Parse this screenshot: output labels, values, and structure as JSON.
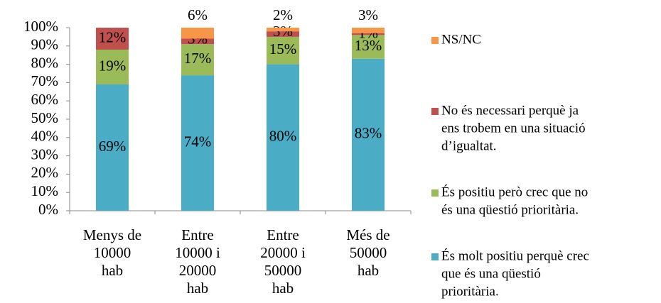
{
  "chart_data": {
    "type": "bar",
    "stacked": true,
    "categories": [
      [
        "Menys de",
        "10000",
        "hab"
      ],
      [
        "Entre",
        "10000 i",
        "20000",
        "hab"
      ],
      [
        "Entre",
        "20000 i",
        "50000",
        "hab"
      ],
      [
        "Més de",
        "50000",
        "hab"
      ]
    ],
    "series": [
      {
        "name": [
          "És molt positiu perquè crec",
          "que és una qüestió",
          "prioritària."
        ],
        "color": "#4bacc6",
        "values": [
          69,
          74,
          80,
          83
        ],
        "value_labels": [
          "69%",
          "74%",
          "80%",
          "83%"
        ]
      },
      {
        "name": [
          "És positiu però crec que no",
          "és una qüestió prioritària."
        ],
        "color": "#9bbb59",
        "values": [
          19,
          17,
          15,
          13
        ],
        "value_labels": [
          "19%",
          "17%",
          "15%",
          "13%"
        ]
      },
      {
        "name": [
          "No és necessari perquè ja",
          "ens trobem en una situació",
          "d’igualtat."
        ],
        "color": "#c0504d",
        "values": [
          12,
          3,
          3,
          1
        ],
        "value_labels": [
          "12%",
          "3%",
          "3%",
          "1%"
        ]
      },
      {
        "name": [
          "NS/NC"
        ],
        "color": "#f79646",
        "values": [
          null,
          6,
          2,
          3
        ],
        "value_labels": [
          null,
          "6%",
          "2%",
          "3%"
        ]
      }
    ],
    "ylim": [
      0,
      100
    ],
    "yticks": [
      {
        "value": 0,
        "label": "0%"
      },
      {
        "value": 10,
        "label": "10%"
      },
      {
        "value": 20,
        "label": "20%"
      },
      {
        "value": 30,
        "label": "30%"
      },
      {
        "value": 40,
        "label": "40%"
      },
      {
        "value": 50,
        "label": "50%"
      },
      {
        "value": 60,
        "label": "60%"
      },
      {
        "value": 70,
        "label": "70%"
      },
      {
        "value": 80,
        "label": "80%"
      },
      {
        "value": 90,
        "label": "90%"
      },
      {
        "value": 100,
        "label": "100%"
      }
    ],
    "legend": "right"
  }
}
